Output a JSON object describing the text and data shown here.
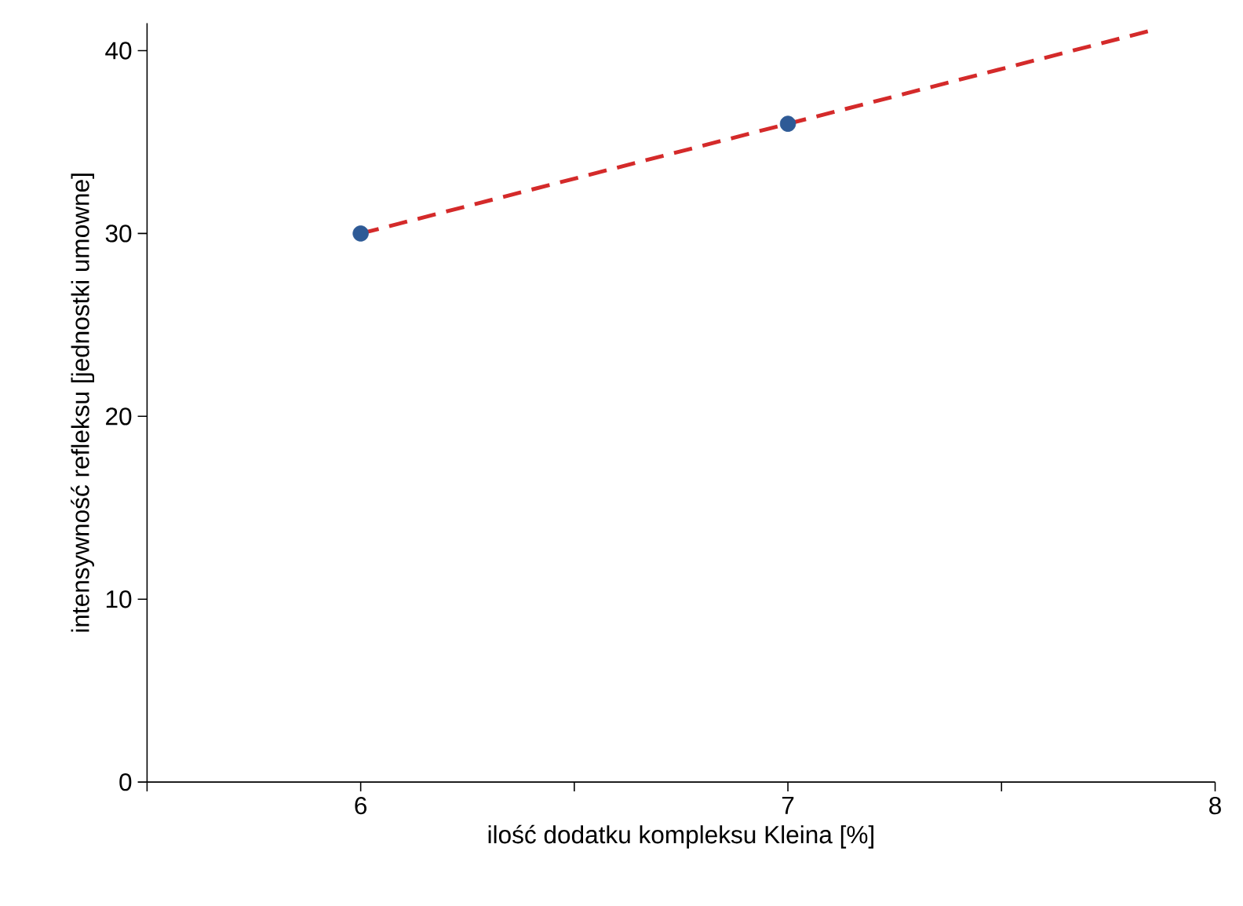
{
  "chart_data": {
    "type": "scatter",
    "xlabel": "ilość dodatku kompleksu Kleina [%]",
    "ylabel": "intensywność refleksu [jednostki umowne]",
    "xlim": [
      5.5,
      8
    ],
    "ylim": [
      0,
      41.5
    ],
    "xticks": [
      {
        "value": 5.5,
        "label": null
      },
      6,
      {
        "value": 6.5,
        "label": null
      },
      7,
      {
        "value": 7.5,
        "label": null
      },
      8
    ],
    "yticks": [
      0,
      10,
      20,
      30,
      40
    ],
    "grid": false,
    "series": [
      {
        "color": "#2e5a96",
        "marker": "circle",
        "x": [
          6,
          7
        ],
        "values": [
          30,
          36
        ]
      },
      {
        "type": "line",
        "color": "#d42a2a",
        "line_style": "dashed",
        "marker": "none",
        "x": [
          6,
          7.85
        ],
        "values": [
          30,
          41.1
        ]
      }
    ]
  }
}
